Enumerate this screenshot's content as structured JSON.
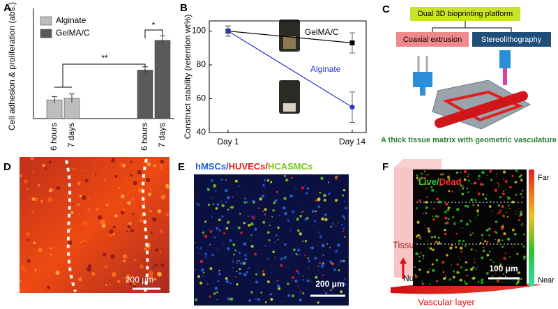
{
  "chart_data": [
    {
      "type": "bar",
      "panel": "A",
      "ylabel": "Cell adhesion & proliferation (abs.)",
      "categories": [
        "6 hours",
        "7 days",
        "6 hours",
        "7 days"
      ],
      "series": [
        {
          "name": "Alginate",
          "color": "#bdbdbd",
          "values": [
            0.85,
            0.92,
            null,
            null
          ],
          "errors": [
            0.15,
            0.2,
            null,
            null
          ]
        },
        {
          "name": "GelMA/C",
          "color": "#5a5a5a",
          "values": [
            null,
            null,
            2.2,
            3.55
          ],
          "errors": [
            null,
            null,
            0.15,
            0.2
          ]
        }
      ],
      "ylim": [
        0,
        5
      ],
      "annotations": [
        "**",
        "*"
      ]
    },
    {
      "type": "line",
      "panel": "B",
      "ylabel": "Construct stability (retention wt%)",
      "categories": [
        "Day 1",
        "Day 14"
      ],
      "series": [
        {
          "name": "GelMA/C",
          "color": "#000000",
          "values": [
            100,
            93
          ],
          "errors": [
            3,
            6
          ]
        },
        {
          "name": "Alginate",
          "color": "#2a35c8",
          "values": [
            100,
            55
          ],
          "errors": [
            3,
            9
          ]
        }
      ],
      "ylim": [
        40,
        106
      ],
      "yticks": [
        40,
        60,
        80,
        100
      ]
    }
  ],
  "panel_c": {
    "letter": "C",
    "platform": "Dual 3D bioprinting platform",
    "method_1": "Coaxial extrusion",
    "method_2": "Stereolithography",
    "caption": "A thick tissue matrix with geometric vasculature"
  },
  "panel_d": {
    "letter": "D",
    "scale_bar": "200 μm"
  },
  "panel_e": {
    "letter": "E",
    "stains": [
      "hMSCs/",
      "HUVECs/",
      "HCASMCs"
    ],
    "scale_bar": "200 μm"
  },
  "panel_f": {
    "letter": "F",
    "stains": [
      "Live/",
      "Dead"
    ],
    "scale_far": "Far",
    "scale_near": "Near",
    "scale_bar": "100 μm",
    "label_matrix": "Tissue matrix",
    "label_nutrients": "Nutrients",
    "label_vascular": "Vascular layer"
  }
}
